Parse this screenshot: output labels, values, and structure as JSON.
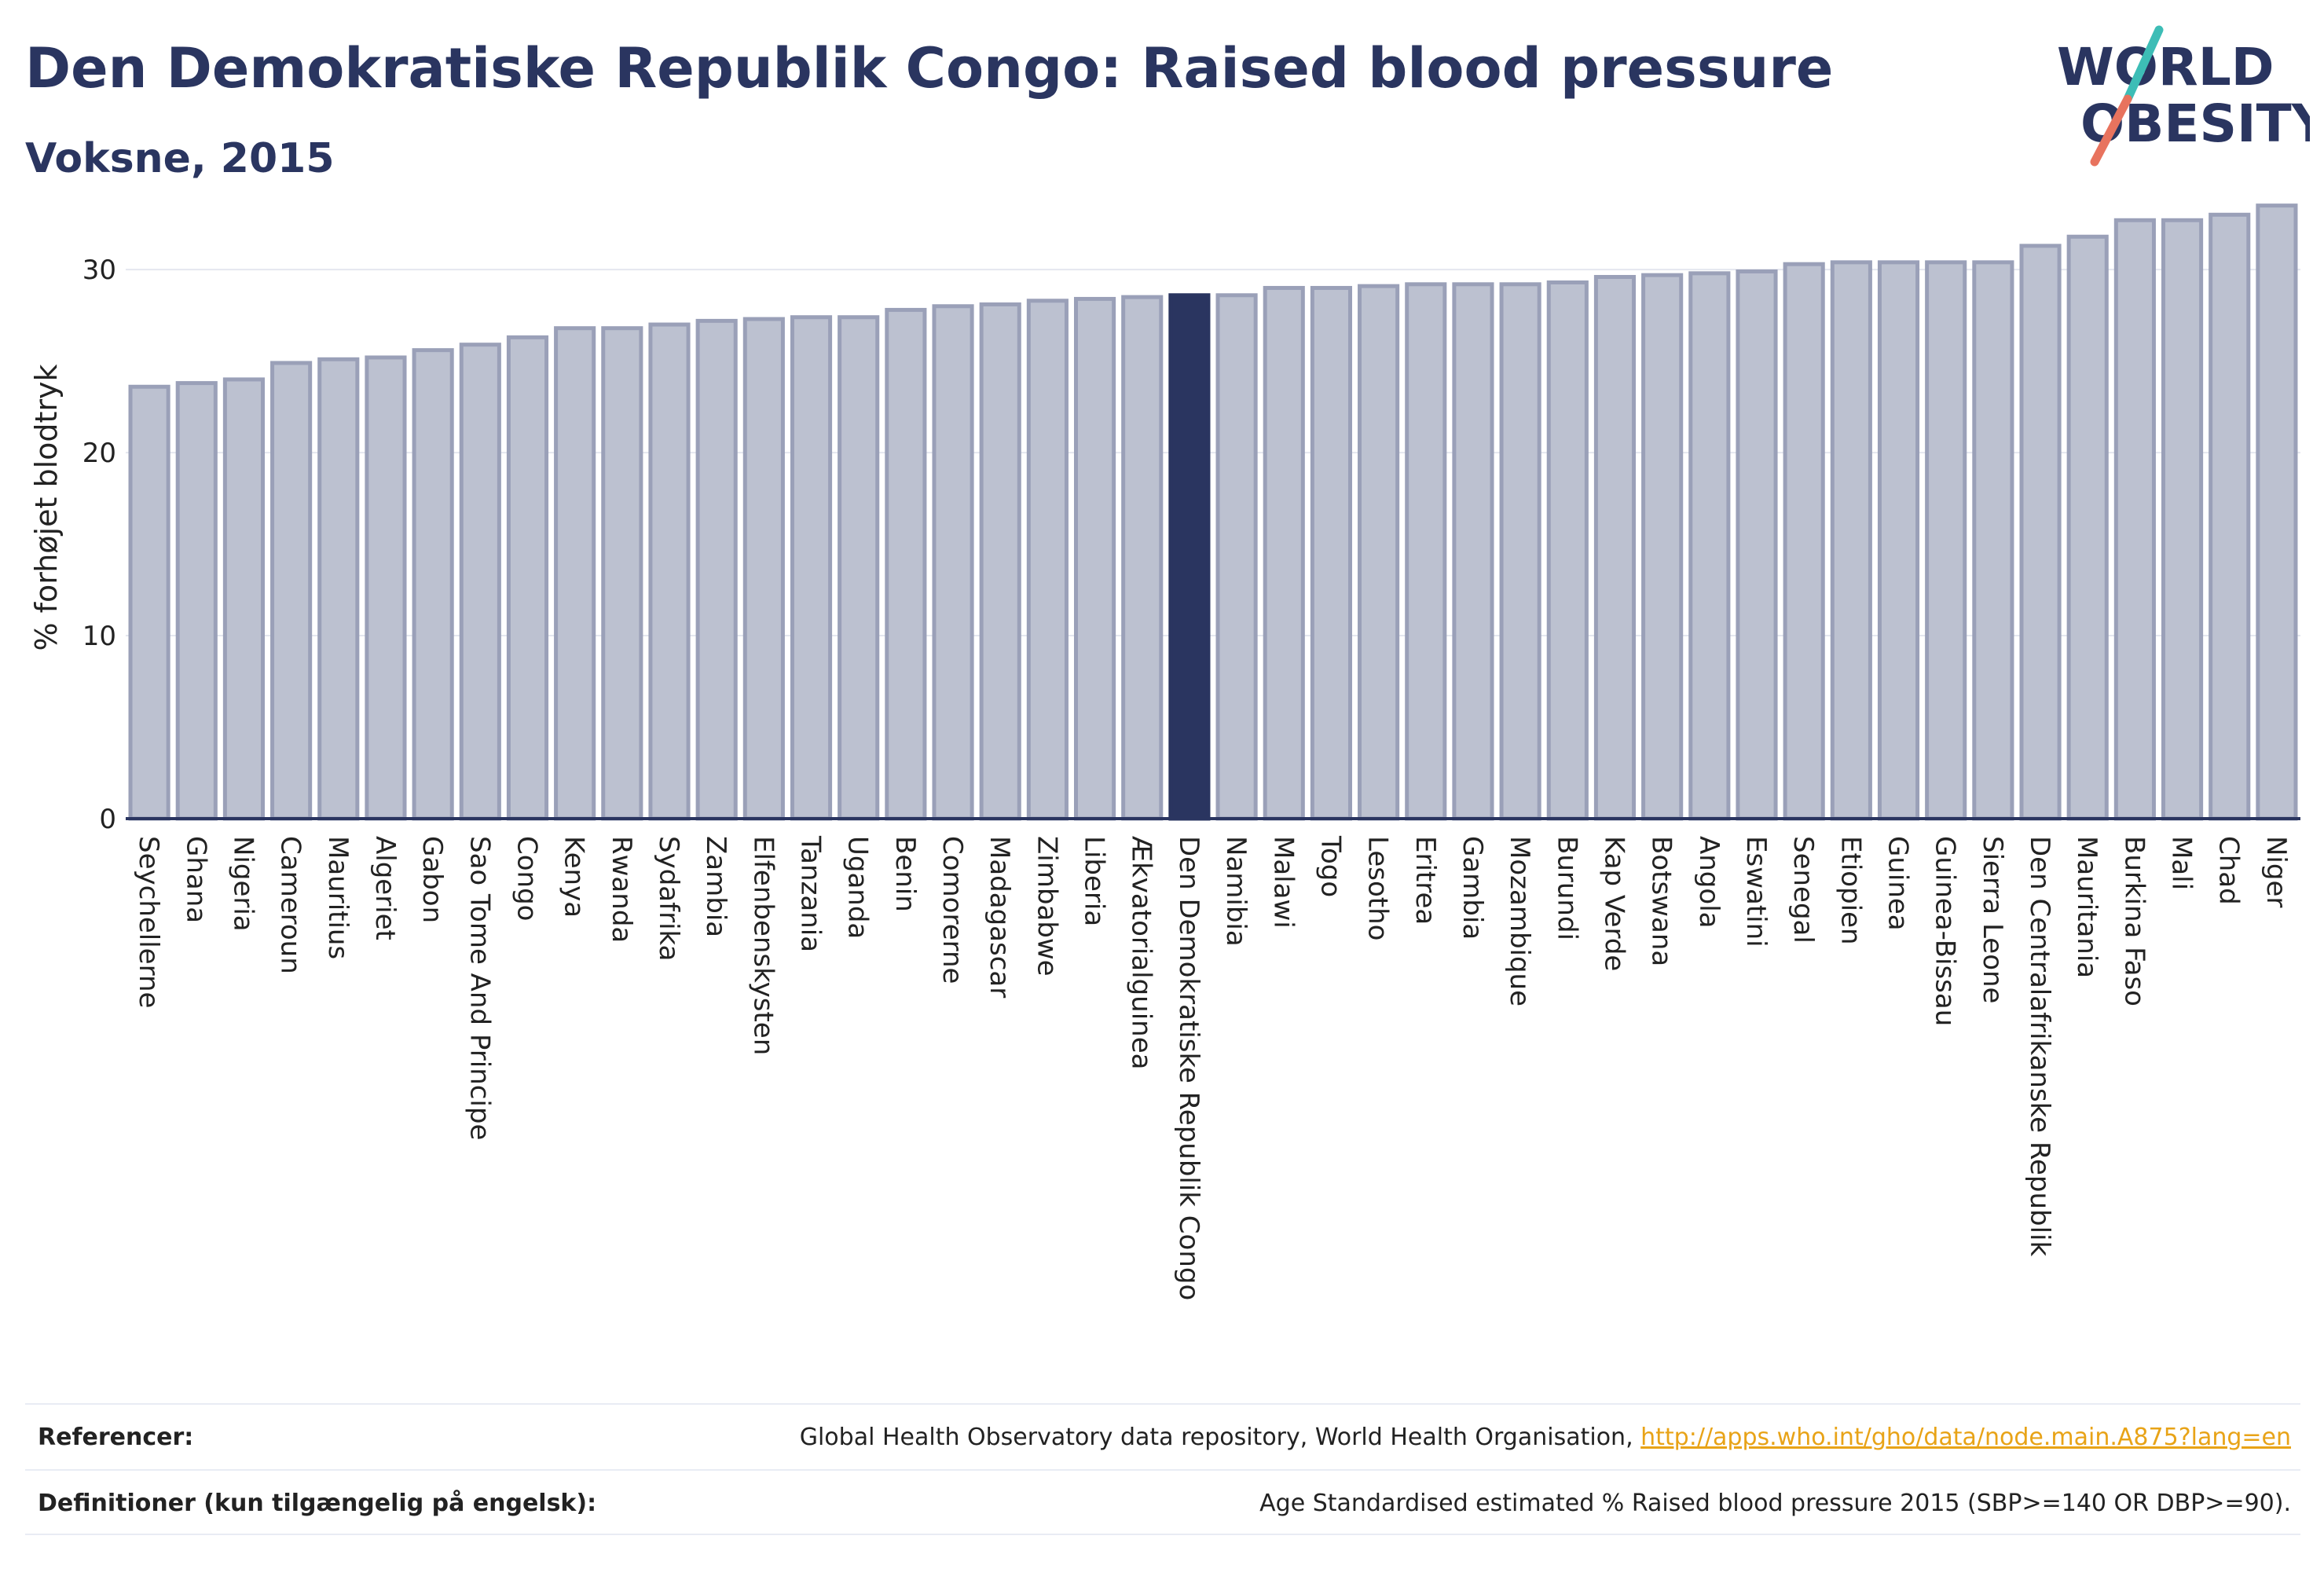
{
  "header": {
    "title": "Den Demokratiske Republik Congo: Raised blood pressure",
    "subtitle": "Voksne, 2015"
  },
  "logo": {
    "line1": "WORLD",
    "line2": "OBESITY",
    "icon": "slash-logo-icon"
  },
  "colors": {
    "bar": "#bcc1d0",
    "bar_border": "#9aa0b8",
    "highlight": "#2a3560",
    "text": "#2a3560"
  },
  "chart_data": {
    "type": "bar",
    "title": "Den Demokratiske Republik Congo: Raised blood pressure",
    "subtitle": "Voksne, 2015",
    "xlabel": "",
    "ylabel": "% forhøjet blodtryk",
    "ylim": [
      0,
      34
    ],
    "yticks": [
      0,
      10,
      20,
      30
    ],
    "grid": true,
    "highlight": "Den Demokratiske Republik Congo",
    "categories": [
      "Seychellerne",
      "Ghana",
      "Nigeria",
      "Cameroun",
      "Mauritius",
      "Algeriet",
      "Gabon",
      "Sao Tome And Principe",
      "Congo",
      "Kenya",
      "Rwanda",
      "Sydafrika",
      "Zambia",
      "Elfenbenskysten",
      "Tanzania",
      "Uganda",
      "Benin",
      "Comorerne",
      "Madagascar",
      "Zimbabwe",
      "Liberia",
      "Ækvatorialguinea",
      "Den Demokratiske Republik Congo",
      "Namibia",
      "Malawi",
      "Togo",
      "Lesotho",
      "Eritrea",
      "Gambia",
      "Mozambique",
      "Burundi",
      "Kap Verde",
      "Botswana",
      "Angola",
      "Eswatini",
      "Senegal",
      "Etiopien",
      "Guinea",
      "Guinea-Bissau",
      "Sierra Leone",
      "Den Centralafrikanske Republik",
      "Mauritania",
      "Burkina Faso",
      "Mali",
      "Chad",
      "Niger"
    ],
    "values": [
      23.6,
      23.8,
      24.0,
      24.9,
      25.1,
      25.2,
      25.6,
      25.9,
      26.3,
      26.8,
      26.8,
      27.0,
      27.2,
      27.3,
      27.4,
      27.4,
      27.8,
      28.0,
      28.1,
      28.3,
      28.4,
      28.5,
      28.6,
      28.6,
      29.0,
      29.0,
      29.1,
      29.2,
      29.2,
      29.2,
      29.3,
      29.6,
      29.7,
      29.8,
      29.9,
      30.3,
      30.4,
      30.4,
      30.4,
      30.4,
      31.3,
      31.8,
      32.7,
      32.7,
      33.0,
      33.5
    ]
  },
  "footer": {
    "references_label": "Referencer:",
    "references_text": "Global Health Observatory data repository, World Health Organisation, ",
    "references_link": "http://apps.who.int/gho/data/node.main.A875?lang=en",
    "definitions_label": "Definitioner (kun tilgængelig på engelsk):",
    "definitions_text": "Age Standardised estimated % Raised blood pressure 2015 (SBP>=140 OR DBP>=90)."
  }
}
